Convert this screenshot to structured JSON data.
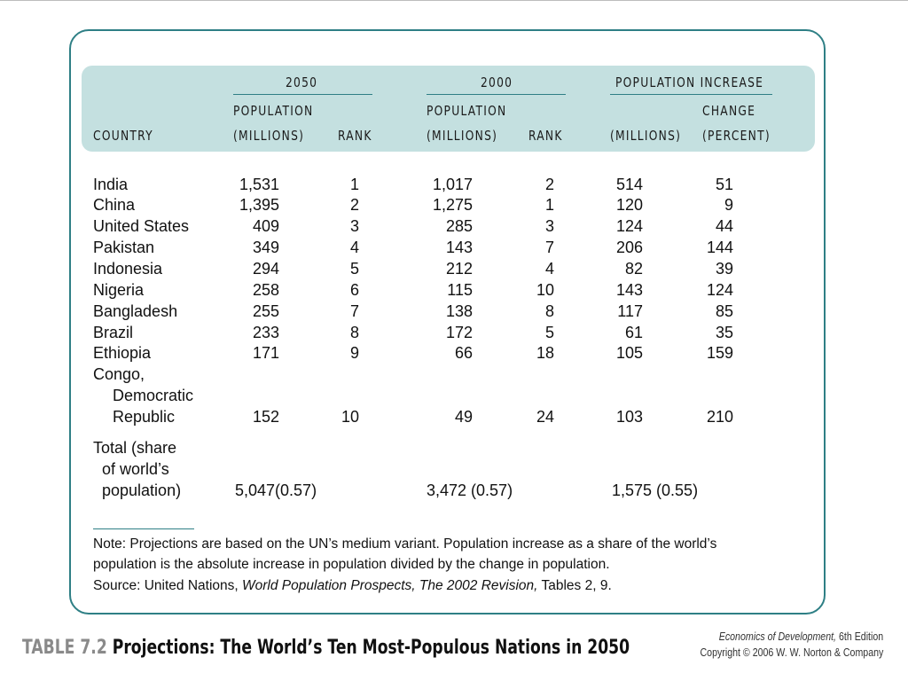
{
  "header": {
    "country": "COUNTRY",
    "group_2050": "2050",
    "group_2000": "2000",
    "group_increase": "POPULATION INCREASE",
    "population": "POPULATION",
    "millions": "(MILLIONS)",
    "rank": "RANK",
    "change": "CHANGE",
    "percent": "(PERCENT)"
  },
  "rows": [
    {
      "country": "India",
      "pop2050": "1,531",
      "rank2050": "1",
      "pop2000": "1,017",
      "rank2000": "2",
      "inc": "514",
      "pct": "51"
    },
    {
      "country": "China",
      "pop2050": "1,395",
      "rank2050": "2",
      "pop2000": "1,275",
      "rank2000": "1",
      "inc": "120",
      "pct": "9"
    },
    {
      "country": "United States",
      "pop2050": "409",
      "rank2050": "3",
      "pop2000": "285",
      "rank2000": "3",
      "inc": "124",
      "pct": "44"
    },
    {
      "country": "Pakistan",
      "pop2050": "349",
      "rank2050": "4",
      "pop2000": "143",
      "rank2000": "7",
      "inc": "206",
      "pct": "144"
    },
    {
      "country": "Indonesia",
      "pop2050": "294",
      "rank2050": "5",
      "pop2000": "212",
      "rank2000": "4",
      "inc": "82",
      "pct": "39"
    },
    {
      "country": "Nigeria",
      "pop2050": "258",
      "rank2050": "6",
      "pop2000": "115",
      "rank2000": "10",
      "inc": "143",
      "pct": "124"
    },
    {
      "country": "Bangladesh",
      "pop2050": "255",
      "rank2050": "7",
      "pop2000": "138",
      "rank2000": "8",
      "inc": "117",
      "pct": "85"
    },
    {
      "country": "Brazil",
      "pop2050": "233",
      "rank2050": "8",
      "pop2000": "172",
      "rank2000": "5",
      "inc": "61",
      "pct": "35"
    },
    {
      "country": "Ethiopia",
      "pop2050": "171",
      "rank2050": "9",
      "pop2000": "66",
      "rank2000": "18",
      "inc": "105",
      "pct": "159"
    }
  ],
  "congo": {
    "line1": "Congo,",
    "line2": "Democratic",
    "line3": "Republic",
    "pop2050": "152",
    "rank2050": "10",
    "pop2000": "49",
    "rank2000": "24",
    "inc": "103",
    "pct": "210"
  },
  "total": {
    "line1": "Total (share",
    "line2": "of world’s",
    "line3": "population)",
    "pop2050": "5,047(0.57)",
    "pop2000": "3,472 (0.57)",
    "inc": "1,575 (0.55)"
  },
  "notes": {
    "line1": "Note: Projections are based on the UN’s medium variant. Population increase as a share of the world’s",
    "line2": "population is the absolute increase in population divided by the change in population.",
    "source_prefix": "Source: United Nations, ",
    "source_title": "World Population Prospects, The 2002 Revision,",
    "source_suffix": " Tables 2, 9."
  },
  "footer": {
    "table_label": "TABLE 7.2",
    "table_title": "Projections: The World’s Ten Most-Populous Nations in 2050",
    "book_title": "Economics of Development,",
    "edition": " 6th Edition",
    "copyright": "Copyright © 2006 W. W. Norton & Company"
  },
  "colors": {
    "frame": "#2e7f85",
    "header_band": "#c4e0e0"
  }
}
